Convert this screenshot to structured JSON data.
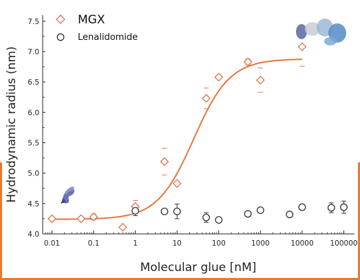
{
  "chart_data": {
    "type": "scatter",
    "x_scale": "log",
    "xlabel": "Molecular glue [nM]",
    "ylabel": "Hydrodynamic radius (nm)",
    "xlim": [
      0.006,
      180000
    ],
    "ylim": [
      4.0,
      7.6
    ],
    "x_ticks": [
      0.01,
      0.1,
      1,
      10,
      100,
      1000,
      10000,
      100000
    ],
    "x_tick_labels": [
      "0.01",
      "0.1",
      "1",
      "10",
      "100",
      "1000",
      "10000",
      "100000"
    ],
    "y_ticks": [
      4.0,
      4.5,
      5.0,
      5.5,
      6.0,
      6.5,
      7.0,
      7.5
    ],
    "y_tick_labels": [
      "4.0",
      "4.5",
      "5.0",
      "5.5",
      "6.0",
      "6.5",
      "7.0",
      "7.5"
    ],
    "legend_position": "top-left",
    "accent_color": "#e87a2e",
    "series": [
      {
        "name": "MGX",
        "marker": "diamond",
        "color": "#e0704a",
        "points": [
          {
            "x": 0.01,
            "y": 4.25,
            "err": 0.0
          },
          {
            "x": 0.05,
            "y": 4.25,
            "err": 0.0
          },
          {
            "x": 0.1,
            "y": 4.28,
            "err": 0.05
          },
          {
            "x": 0.5,
            "y": 4.11,
            "err": 0.0
          },
          {
            "x": 1,
            "y": 4.45,
            "err": 0.1
          },
          {
            "x": 5,
            "y": 5.19,
            "err": 0.22
          },
          {
            "x": 10,
            "y": 4.83,
            "err": 0.0
          },
          {
            "x": 50,
            "y": 6.23,
            "err": 0.17
          },
          {
            "x": 100,
            "y": 6.58,
            "err": 0.0
          },
          {
            "x": 500,
            "y": 6.83,
            "err": 0.05
          },
          {
            "x": 1000,
            "y": 6.53,
            "err": 0.2
          },
          {
            "x": 10000,
            "y": 7.08,
            "err": 0.32
          }
        ]
      },
      {
        "name": "Lenalidomide",
        "marker": "circle",
        "color": "#333333",
        "points": [
          {
            "x": 1,
            "y": 4.38,
            "err": 0.08
          },
          {
            "x": 5,
            "y": 4.37,
            "err": 0.0
          },
          {
            "x": 10,
            "y": 4.37,
            "err": 0.12
          },
          {
            "x": 50,
            "y": 4.27,
            "err": 0.08
          },
          {
            "x": 100,
            "y": 4.23,
            "err": 0.0
          },
          {
            "x": 500,
            "y": 4.33,
            "err": 0.0
          },
          {
            "x": 1000,
            "y": 4.39,
            "err": 0.0
          },
          {
            "x": 5000,
            "y": 4.32,
            "err": 0.0
          },
          {
            "x": 10000,
            "y": 4.44,
            "err": 0.0
          },
          {
            "x": 50000,
            "y": 4.43,
            "err": 0.08
          },
          {
            "x": 100000,
            "y": 4.44,
            "err": 0.1
          }
        ]
      }
    ],
    "fit": {
      "series": "MGX",
      "color": "#e8743c",
      "bottom": 4.24,
      "top": 6.88,
      "ec50": 25,
      "hill": 1.0,
      "x_range": [
        0.01,
        10000
      ]
    }
  },
  "icons": {
    "low": "monomer-protein-icon",
    "high": "complex-protein-icon"
  }
}
